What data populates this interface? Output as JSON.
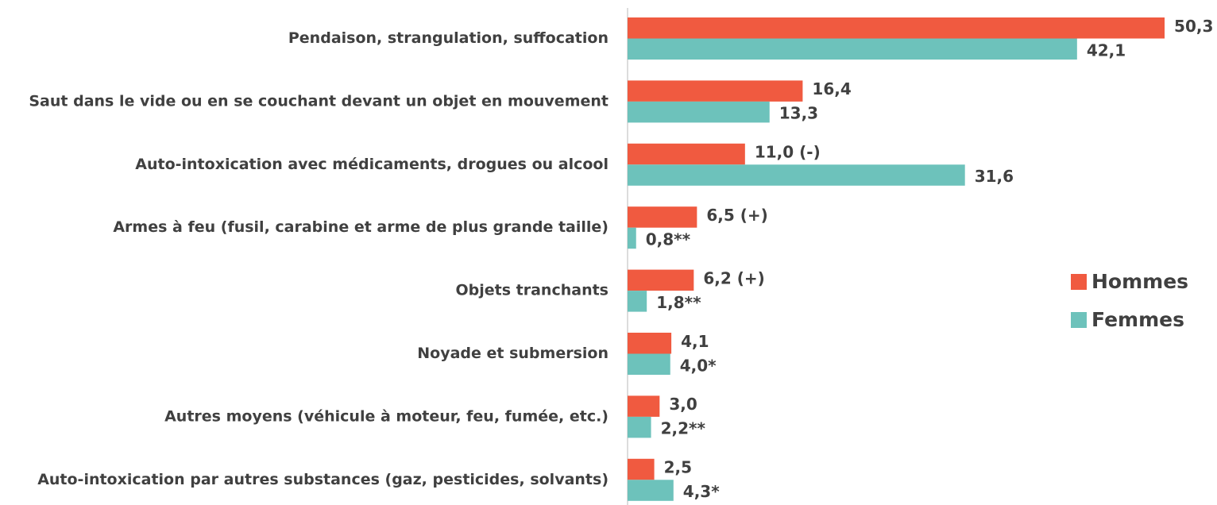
{
  "chart_data": {
    "type": "bar",
    "orientation": "horizontal",
    "categories": [
      "Pendaison, strangulation, suffocation",
      "Saut dans le vide ou en se couchant devant un objet en mouvement",
      "Auto-intoxication avec médicaments, drogues ou alcool",
      "Armes à feu (fusil, carabine et arme de plus grande taille)",
      "Objets tranchants",
      "Noyade et submersion",
      "Autres moyens (véhicule à moteur, feu, fumée, etc.)",
      "Auto-intoxication par autres substances (gaz, pesticides, solvants)"
    ],
    "series": [
      {
        "name": "Hommes",
        "color": "#f05a40",
        "values": [
          50.3,
          16.4,
          11.0,
          6.5,
          6.2,
          4.1,
          3.0,
          2.5
        ],
        "value_labels": [
          "50,3",
          "16,4",
          "11,0 (-)",
          "6,5 (+)",
          "6,2 (+)",
          "4,1",
          "3,0",
          "2,5"
        ]
      },
      {
        "name": "Femmes",
        "color": "#6dc2bb",
        "values": [
          42.1,
          13.3,
          31.6,
          0.8,
          1.8,
          4.0,
          2.2,
          4.3
        ],
        "value_labels": [
          "42,1",
          "13,3",
          "31,6",
          "0,8**",
          "1,8**",
          "4,0*",
          "2,2**",
          "4,3*"
        ]
      }
    ],
    "legend": "right"
  }
}
